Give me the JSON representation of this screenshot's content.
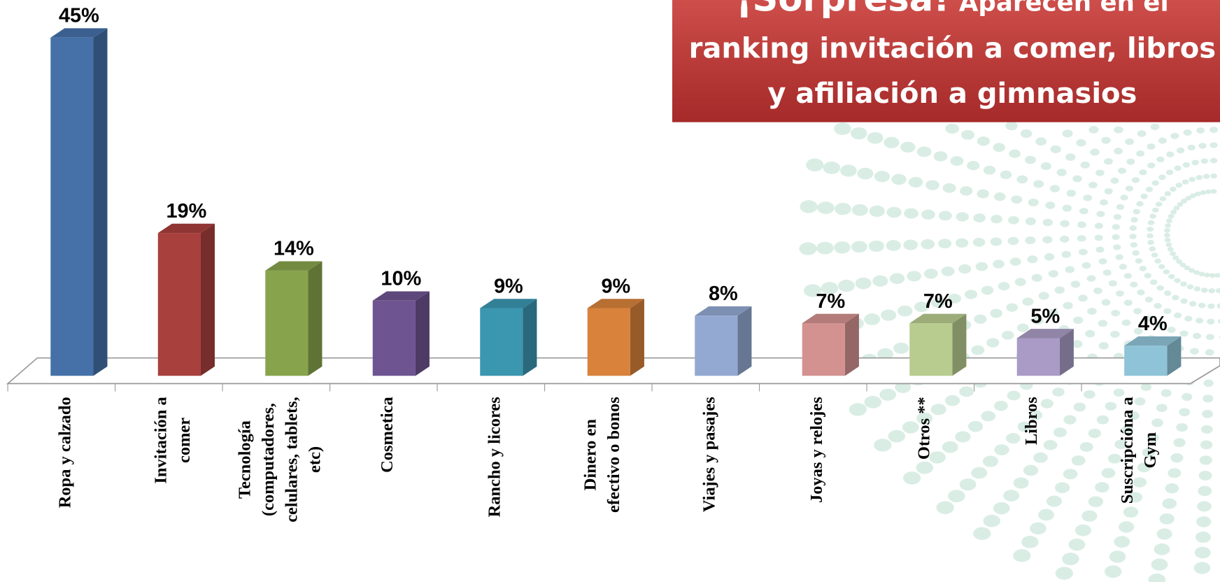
{
  "chart_data": {
    "type": "bar",
    "annotation": {
      "emphasis": "¡Sorpresa!",
      "lines": [
        "Aparecen en el",
        "ranking invitación a comer, libros",
        "y afiliación a gimnasios"
      ]
    },
    "categories": [
      [
        "Ropa y calzado"
      ],
      [
        "Invitación a",
        "comer"
      ],
      [
        "Tecnología",
        "(computadores,",
        "celulares, tablets,",
        "etc)"
      ],
      [
        "Cosmetica"
      ],
      [
        "Rancho y licores"
      ],
      [
        "Dinero en",
        "efectivo o bonos"
      ],
      [
        "Viajes y pasajes"
      ],
      [
        "Joyas y relojes"
      ],
      [
        "Otros **"
      ],
      [
        "Libros"
      ],
      [
        "Suscripcióna a",
        "Gym"
      ]
    ],
    "values": [
      45,
      19,
      14,
      10,
      9,
      9,
      8,
      7,
      7,
      5,
      4
    ],
    "value_labels": [
      "45%",
      "19%",
      "14%",
      "10%",
      "9%",
      "9%",
      "8%",
      "7%",
      "7%",
      "5%",
      "4%"
    ],
    "colors": [
      "#4571a8",
      "#a8403d",
      "#87a44c",
      "#6e5591",
      "#3b96b0",
      "#d8823b",
      "#93a9d2",
      "#d39290",
      "#b8cc8f",
      "#a99bc5",
      "#8fc3d7"
    ],
    "ylim": [
      0,
      50
    ]
  }
}
